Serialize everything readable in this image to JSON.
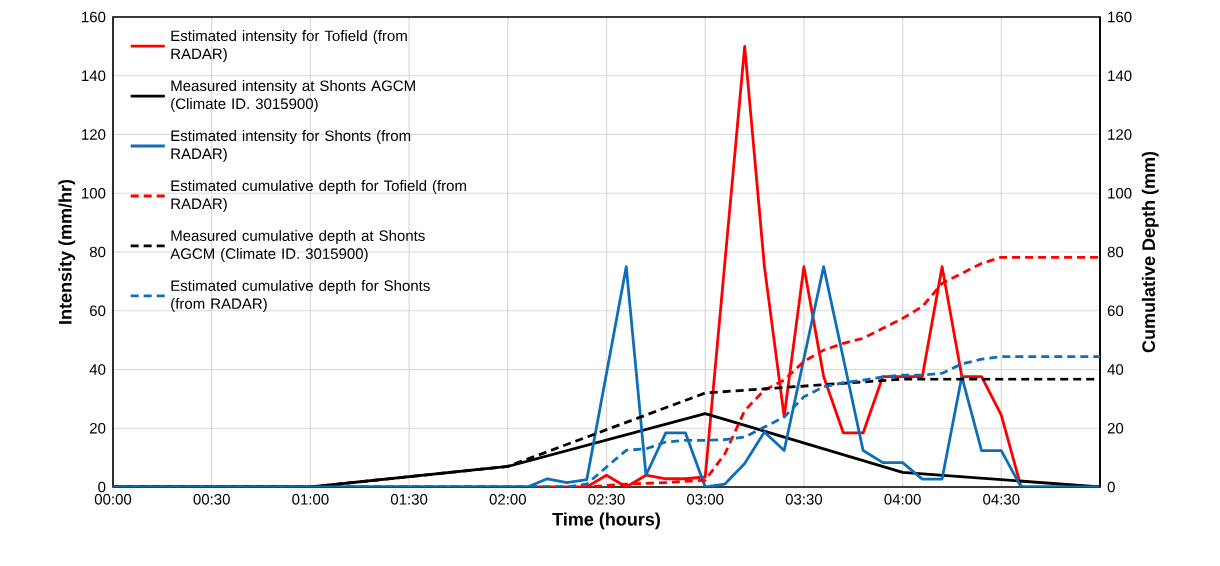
{
  "chart_data": {
    "type": "line",
    "xlabel": "Time (hours)",
    "ylabel": "Intensity (mm/hr)",
    "y2label": "Cumulative Depth (mm)",
    "xlim": [
      0,
      5
    ],
    "ylim": [
      0,
      160
    ],
    "y2lim": [
      0,
      160
    ],
    "xticks": [
      {
        "value": 0,
        "label": "00:00"
      },
      {
        "value": 0.5,
        "label": "00:30"
      },
      {
        "value": 1,
        "label": "01:00"
      },
      {
        "value": 1.5,
        "label": "01:30"
      },
      {
        "value": 2,
        "label": "02:00"
      },
      {
        "value": 2.5,
        "label": "02:30"
      },
      {
        "value": 3,
        "label": "03:00"
      },
      {
        "value": 3.5,
        "label": "03:30"
      },
      {
        "value": 4,
        "label": "04:00"
      },
      {
        "value": 4.5,
        "label": "04:30"
      }
    ],
    "yticks": [
      0,
      20,
      40,
      60,
      80,
      100,
      120,
      140,
      160
    ],
    "y2ticks": [
      0,
      20,
      40,
      60,
      80,
      100,
      120,
      140,
      160
    ],
    "grid": true,
    "legend": "top left",
    "series": [
      {
        "name": "Estimated intensity for Tofield (from RADAR)",
        "color": "#ff0000",
        "line_style": "solid",
        "axis": "y",
        "x": [
          0,
          2.4,
          2.5,
          2.6,
          2.7,
          2.8,
          2.9,
          3.0,
          3.2,
          3.3,
          3.4,
          3.5,
          3.6,
          3.7,
          3.8,
          3.9,
          4.0,
          4.1,
          4.2,
          4.3,
          4.4,
          4.5,
          4.6,
          5.0
        ],
        "values": [
          0,
          0,
          4,
          0,
          4,
          2.8,
          2.8,
          3.4,
          150,
          75,
          24,
          75,
          37.6,
          18.4,
          18.4,
          37.6,
          37.6,
          37.6,
          75,
          37.6,
          37.6,
          24.5,
          0,
          0
        ]
      },
      {
        "name": "Measured intensity at Shonts AGCM (Climate ID. 3015900)",
        "color": "#000000",
        "line_style": "solid",
        "axis": "y",
        "x": [
          0,
          1,
          2,
          3,
          4,
          5
        ],
        "values": [
          0,
          0,
          7,
          25,
          5,
          0
        ]
      },
      {
        "name": "Estimated intensity for Shonts (from RADAR)",
        "color": "#0e6eb8",
        "line_style": "solid",
        "axis": "y",
        "x": [
          0,
          2.1,
          2.2,
          2.3,
          2.4,
          2.6,
          2.7,
          2.8,
          2.9,
          3.0,
          3.1,
          3.2,
          3.3,
          3.4,
          3.6,
          3.8,
          3.9,
          4.0,
          4.1,
          4.2,
          4.3,
          4.4,
          4.5,
          4.6,
          5.0
        ],
        "values": [
          0,
          0,
          2.8,
          1.5,
          2.5,
          75,
          4,
          18.4,
          18.4,
          0,
          1,
          8,
          18.7,
          12.4,
          75,
          12.4,
          8.3,
          8.3,
          2.7,
          2.7,
          37.6,
          12.4,
          12.4,
          0,
          0
        ]
      },
      {
        "name": "Estimated cumulative depth for Tofield (from RADAR)",
        "color": "#ff0000",
        "line_style": "dashed",
        "axis": "y2",
        "x": [
          0,
          2.4,
          2.6,
          2.8,
          3.0,
          3.1,
          3.2,
          3.3,
          3.4,
          3.5,
          3.6,
          3.7,
          3.8,
          3.9,
          4.0,
          4.1,
          4.2,
          4.3,
          4.4,
          4.5,
          5.0
        ],
        "values": [
          0,
          0,
          1,
          1.5,
          2.3,
          11.3,
          26,
          33,
          36.4,
          42.7,
          46.6,
          48.9,
          50.6,
          54,
          57.4,
          61.4,
          69.3,
          72.7,
          76.1,
          78.2,
          78.2
        ]
      },
      {
        "name": "Measured cumulative depth at Shonts AGCM (Climate ID. 3015900)",
        "color": "#000000",
        "line_style": "dashed",
        "axis": "y2",
        "x": [
          0,
          1,
          2,
          3,
          4,
          5
        ],
        "values": [
          0,
          0,
          7,
          32,
          36.7,
          36.7
        ]
      },
      {
        "name": "Estimated cumulative depth for Shonts (from RADAR)",
        "color": "#0e6eb8",
        "line_style": "dashed",
        "axis": "y2",
        "x": [
          0,
          2.3,
          2.4,
          2.5,
          2.6,
          2.7,
          2.8,
          2.9,
          3.0,
          3.1,
          3.2,
          3.3,
          3.4,
          3.5,
          3.6,
          3.7,
          3.8,
          3.9,
          4.0,
          4.1,
          4.2,
          4.3,
          4.4,
          4.5,
          5.0
        ],
        "values": [
          0,
          0,
          1,
          6.8,
          12.5,
          13,
          15.3,
          15.9,
          15.9,
          16.1,
          17,
          20.4,
          23.8,
          30.7,
          34.1,
          35.5,
          36.4,
          37.5,
          38.1,
          38.1,
          38.7,
          41.9,
          43.5,
          44.4,
          44.4
        ]
      }
    ]
  }
}
